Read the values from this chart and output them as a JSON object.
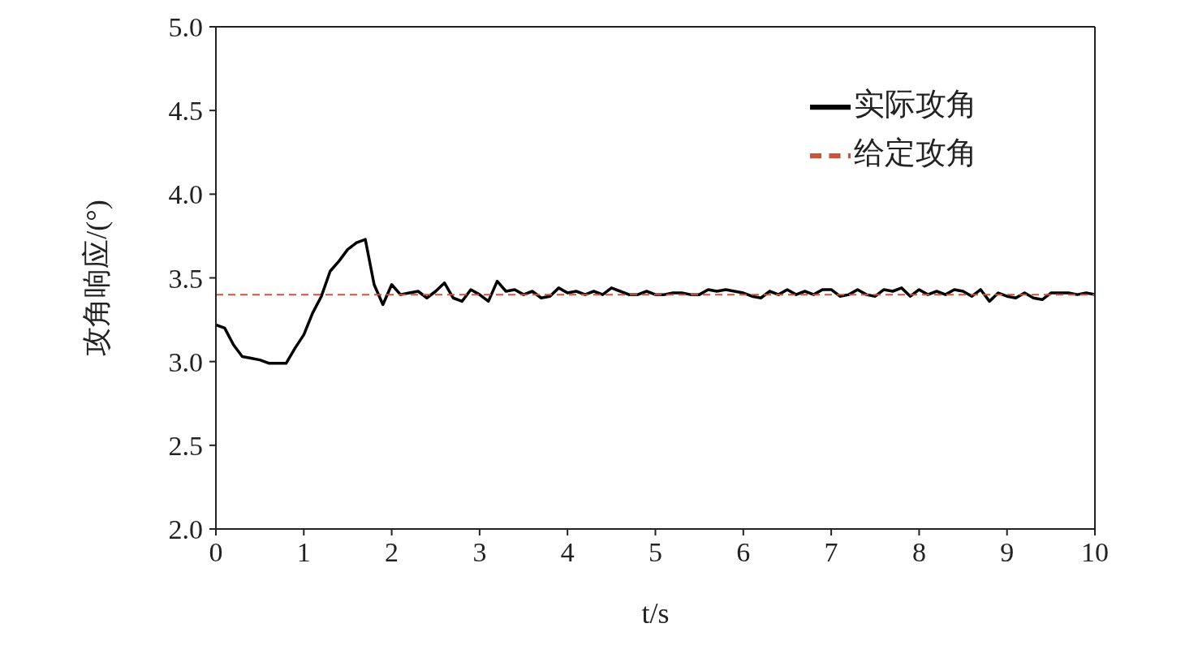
{
  "chart_data": {
    "type": "line",
    "xlabel": "t/s",
    "ylabel": "攻角响应/(°)",
    "xlim": [
      0,
      10
    ],
    "xticks": [
      0,
      1,
      2,
      3,
      4,
      5,
      6,
      7,
      8,
      9,
      10
    ],
    "ylim": [
      2.0,
      5.0
    ],
    "yticks": [
      {
        "value": 2,
        "label": "2.0"
      },
      {
        "value": 2.5,
        "label": "2.5"
      },
      {
        "value": 3,
        "label": "3.0"
      },
      {
        "value": 3.5,
        "label": "3.5"
      },
      {
        "value": 4,
        "label": "4.0"
      },
      {
        "value": 4.5,
        "label": "4.5"
      },
      {
        "value": 5,
        "label": "5.0"
      }
    ],
    "legend": "top right",
    "marker": "none",
    "series": [
      {
        "name": "实际攻角",
        "color": "#000000",
        "line_style": "solid",
        "x": [
          0,
          0.1,
          0.2,
          0.3,
          0.4,
          0.5,
          0.6,
          0.7,
          0.8,
          0.9,
          1.0,
          1.1,
          1.2,
          1.3,
          1.4,
          1.5,
          1.6,
          1.7,
          1.8,
          1.9,
          2.0,
          2.1,
          2.2,
          2.3,
          2.4,
          2.5,
          2.6,
          2.7,
          2.8,
          2.9,
          3.0,
          3.1,
          3.2,
          3.3,
          3.4,
          3.5,
          3.6,
          3.7,
          3.8,
          3.9,
          4.0,
          4.1,
          4.2,
          4.3,
          4.4,
          4.5,
          4.6,
          4.7,
          4.8,
          4.9,
          5.0,
          5.1,
          5.2,
          5.3,
          5.4,
          5.5,
          5.6,
          5.7,
          5.8,
          5.9,
          6.0,
          6.1,
          6.2,
          6.3,
          6.4,
          6.5,
          6.6,
          6.7,
          6.8,
          6.9,
          7.0,
          7.1,
          7.2,
          7.3,
          7.4,
          7.5,
          7.6,
          7.7,
          7.8,
          7.9,
          8.0,
          8.1,
          8.2,
          8.3,
          8.4,
          8.5,
          8.6,
          8.7,
          8.8,
          8.9,
          9.0,
          9.1,
          9.2,
          9.3,
          9.4,
          9.5,
          9.6,
          9.7,
          9.8,
          9.9,
          10.0
        ],
        "values": [
          3.22,
          3.2,
          3.1,
          3.03,
          3.02,
          3.01,
          2.99,
          2.99,
          2.99,
          3.08,
          3.16,
          3.29,
          3.39,
          3.54,
          3.6,
          3.67,
          3.71,
          3.73,
          3.46,
          3.34,
          3.46,
          3.4,
          3.41,
          3.42,
          3.38,
          3.42,
          3.47,
          3.38,
          3.36,
          3.43,
          3.4,
          3.36,
          3.48,
          3.42,
          3.43,
          3.4,
          3.42,
          3.38,
          3.39,
          3.44,
          3.41,
          3.42,
          3.4,
          3.42,
          3.4,
          3.44,
          3.42,
          3.4,
          3.4,
          3.42,
          3.4,
          3.4,
          3.41,
          3.41,
          3.4,
          3.4,
          3.43,
          3.42,
          3.43,
          3.42,
          3.41,
          3.39,
          3.38,
          3.42,
          3.4,
          3.43,
          3.4,
          3.42,
          3.4,
          3.43,
          3.43,
          3.39,
          3.4,
          3.43,
          3.4,
          3.39,
          3.43,
          3.42,
          3.44,
          3.39,
          3.43,
          3.4,
          3.42,
          3.4,
          3.43,
          3.42,
          3.39,
          3.43,
          3.36,
          3.41,
          3.39,
          3.38,
          3.41,
          3.38,
          3.37,
          3.41,
          3.41,
          3.41,
          3.4,
          3.41,
          3.4
        ]
      },
      {
        "name": "给定攻角",
        "color": "#c8553d",
        "line_style": "dashed",
        "x": [
          0,
          10
        ],
        "values": [
          3.4,
          3.4
        ]
      }
    ]
  }
}
